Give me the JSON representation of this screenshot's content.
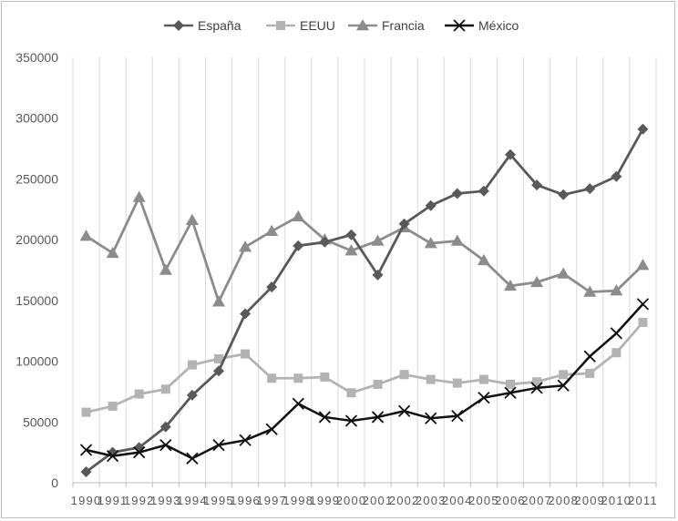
{
  "chart_data": {
    "type": "line",
    "title": "",
    "xlabel": "",
    "ylabel": "",
    "x": [
      "1990",
      "1991",
      "1992",
      "1993",
      "1994",
      "1995",
      "1996",
      "1997",
      "1998",
      "1999",
      "2000",
      "2001",
      "2002",
      "2003",
      "2004",
      "2005",
      "2006",
      "2007",
      "2008",
      "2009",
      "2010",
      "2011"
    ],
    "ylim": [
      0,
      350000
    ],
    "yticks": [
      "0",
      "50000",
      "100000",
      "150000",
      "200000",
      "250000",
      "300000",
      "350000"
    ],
    "grid": "vertical",
    "legend": "top",
    "series": [
      {
        "name": "España",
        "color": "#595959",
        "marker": "diamond",
        "values": [
          9000,
          25000,
          29000,
          46000,
          72000,
          92000,
          139000,
          161000,
          195000,
          198000,
          204000,
          171000,
          213000,
          228000,
          238000,
          240000,
          270000,
          245000,
          237000,
          242000,
          252000,
          291000
        ]
      },
      {
        "name": "EEUU",
        "color": "#b3b3b3",
        "marker": "square",
        "values": [
          58000,
          63000,
          73000,
          77000,
          97000,
          102000,
          106000,
          86000,
          86000,
          87000,
          74000,
          81000,
          89000,
          85000,
          82000,
          85000,
          81000,
          83000,
          89000,
          90000,
          107000,
          132000
        ]
      },
      {
        "name": "Francia",
        "color": "#8c8c8c",
        "marker": "triangle",
        "values": [
          203000,
          189000,
          235000,
          175000,
          216000,
          149000,
          194000,
          207000,
          219000,
          200000,
          191000,
          199000,
          210000,
          197000,
          199000,
          183000,
          162000,
          165000,
          172000,
          157000,
          158000,
          179000
        ]
      },
      {
        "name": "México",
        "color": "#111111",
        "marker": "x",
        "values": [
          27000,
          22000,
          25000,
          31000,
          20000,
          31000,
          35000,
          44000,
          65000,
          54000,
          51000,
          54000,
          59000,
          53000,
          55000,
          70000,
          74000,
          78000,
          80000,
          104000,
          123000,
          147000
        ]
      }
    ]
  }
}
